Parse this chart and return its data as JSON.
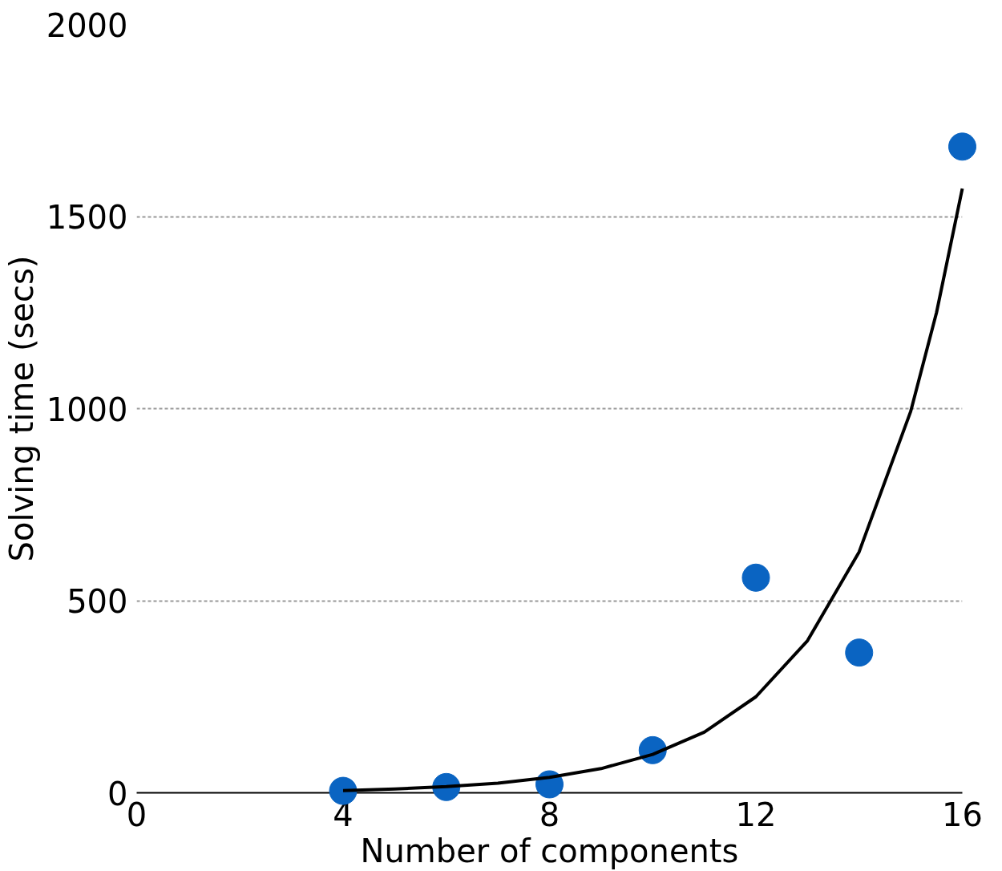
{
  "chart_data": {
    "type": "scatter",
    "xlabel": "Number of components",
    "ylabel": "Solving time (secs)",
    "xlim": [
      0,
      16
    ],
    "ylim": [
      0,
      2000
    ],
    "xticks": [
      0,
      4,
      8,
      12,
      16
    ],
    "yticks": [
      0,
      500,
      1000,
      1500,
      2000
    ],
    "grid": "y",
    "marker": "circle",
    "series": [
      {
        "color": "#0a64c2",
        "x": [
          4,
          6,
          8,
          10,
          12,
          14,
          16
        ],
        "values": [
          5,
          15,
          22,
          111,
          560,
          365,
          1682
        ]
      },
      {
        "type": "line",
        "color": "#000000",
        "line_style": "solid",
        "marker": "none",
        "x": [
          4,
          5,
          6,
          7,
          8,
          9,
          10,
          11,
          12,
          13,
          14,
          15,
          15.5,
          16
        ],
        "values": [
          6,
          10,
          16,
          25,
          40,
          63,
          100,
          158,
          250,
          396,
          627,
          993,
          1250,
          1573
        ]
      }
    ]
  }
}
